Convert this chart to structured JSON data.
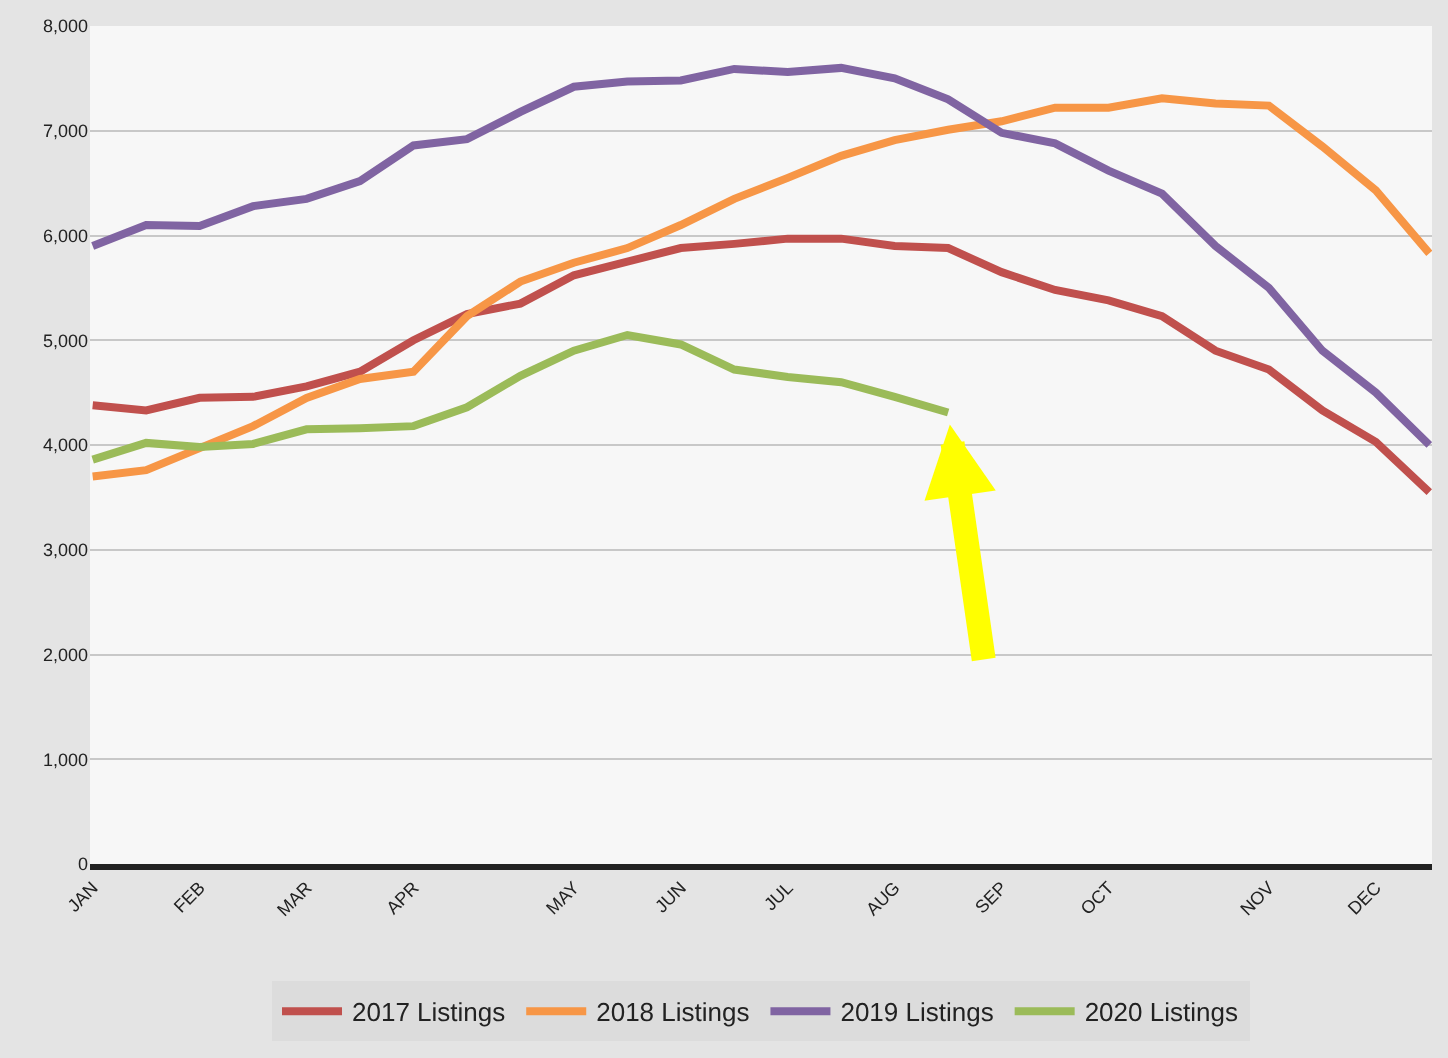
{
  "chart_data": {
    "type": "line",
    "categories": [
      "JAN",
      null,
      "FEB",
      null,
      "MAR",
      null,
      "APR",
      null,
      null,
      "MAY",
      null,
      "JUN",
      null,
      "JUL",
      null,
      "AUG",
      null,
      "SEP",
      null,
      "OCT",
      null,
      null,
      "NOV",
      null,
      "DEC",
      null
    ],
    "series": [
      {
        "name": "2017 Listings",
        "color": "#c0504d",
        "values": [
          4380,
          4330,
          4450,
          4460,
          4560,
          4700,
          5000,
          5250,
          5350,
          5620,
          5750,
          5880,
          5920,
          5970,
          5970,
          5900,
          5880,
          5650,
          5480,
          5380,
          5230,
          4900,
          4720,
          4330,
          4030,
          3550
        ]
      },
      {
        "name": "2018 Listings",
        "color": "#f79646",
        "values": [
          3700,
          3760,
          3970,
          4180,
          4450,
          4630,
          4700,
          5230,
          5560,
          5740,
          5880,
          6100,
          6350,
          6550,
          6760,
          6910,
          7010,
          7090,
          7220,
          7220,
          7310,
          7260,
          7240,
          6850,
          6430,
          5830
        ]
      },
      {
        "name": "2019 Listings",
        "color": "#8064a2",
        "values": [
          5900,
          6100,
          6090,
          6280,
          6350,
          6520,
          6860,
          6920,
          7180,
          7420,
          7470,
          7480,
          7590,
          7560,
          7600,
          7500,
          7300,
          6980,
          6880,
          6620,
          6400,
          5900,
          5500,
          4900,
          4500,
          4000
        ]
      },
      {
        "name": "2020 Listings",
        "color": "#9bbb59",
        "values": [
          3860,
          4020,
          3980,
          4010,
          4150,
          4160,
          4180,
          4360,
          4660,
          4900,
          5050,
          4960,
          4720,
          4650,
          4600,
          4460,
          4310,
          null,
          null,
          null,
          null,
          null,
          null,
          null,
          null,
          null
        ]
      }
    ],
    "ylim": [
      0,
      8000
    ],
    "yticks": [
      {
        "value": 0,
        "label": "0"
      },
      {
        "value": 1000,
        "label": "1,000"
      },
      {
        "value": 2000,
        "label": "2,000"
      },
      {
        "value": 3000,
        "label": "3,000"
      },
      {
        "value": 4000,
        "label": "4,000"
      },
      {
        "value": 5000,
        "label": "5,000"
      },
      {
        "value": 6000,
        "label": "6,000"
      },
      {
        "value": 7000,
        "label": "7,000"
      },
      {
        "value": 8000,
        "label": "8,000"
      }
    ],
    "grid": "y",
    "legend": "bottom",
    "marker": "none",
    "line_style": "solid"
  }
}
